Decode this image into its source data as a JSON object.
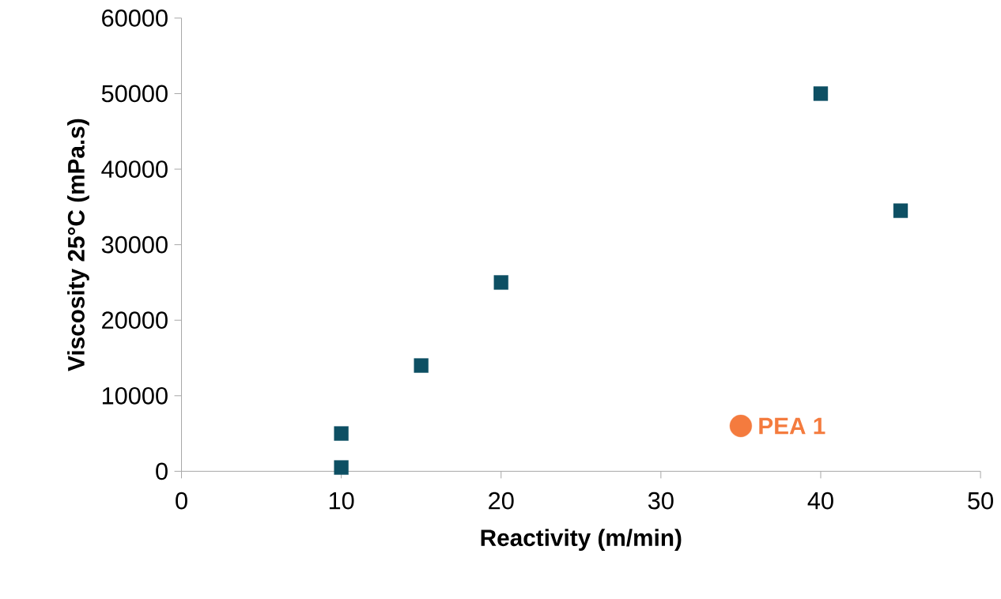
{
  "chart_data": {
    "type": "scatter",
    "xlabel": "Reactivity (m/min)",
    "ylabel": "Viscosity 25°C (mPa.s)",
    "xlim": [
      0,
      50
    ],
    "ylim": [
      0,
      60000
    ],
    "xticks": [
      0,
      10,
      20,
      30,
      40,
      50
    ],
    "yticks": [
      0,
      10000,
      20000,
      30000,
      40000,
      50000,
      60000
    ],
    "grid": false,
    "series": [
      {
        "color": "#0d4f63",
        "marker": "square",
        "x": [
          10,
          10,
          15,
          20,
          40,
          45
        ],
        "values": [
          500,
          5000,
          14000,
          25000,
          50000,
          34500
        ]
      },
      {
        "name": "PEA 1",
        "color": "#f47b3e",
        "marker": "circle",
        "x": [
          35
        ],
        "values": [
          6000
        ]
      }
    ]
  }
}
